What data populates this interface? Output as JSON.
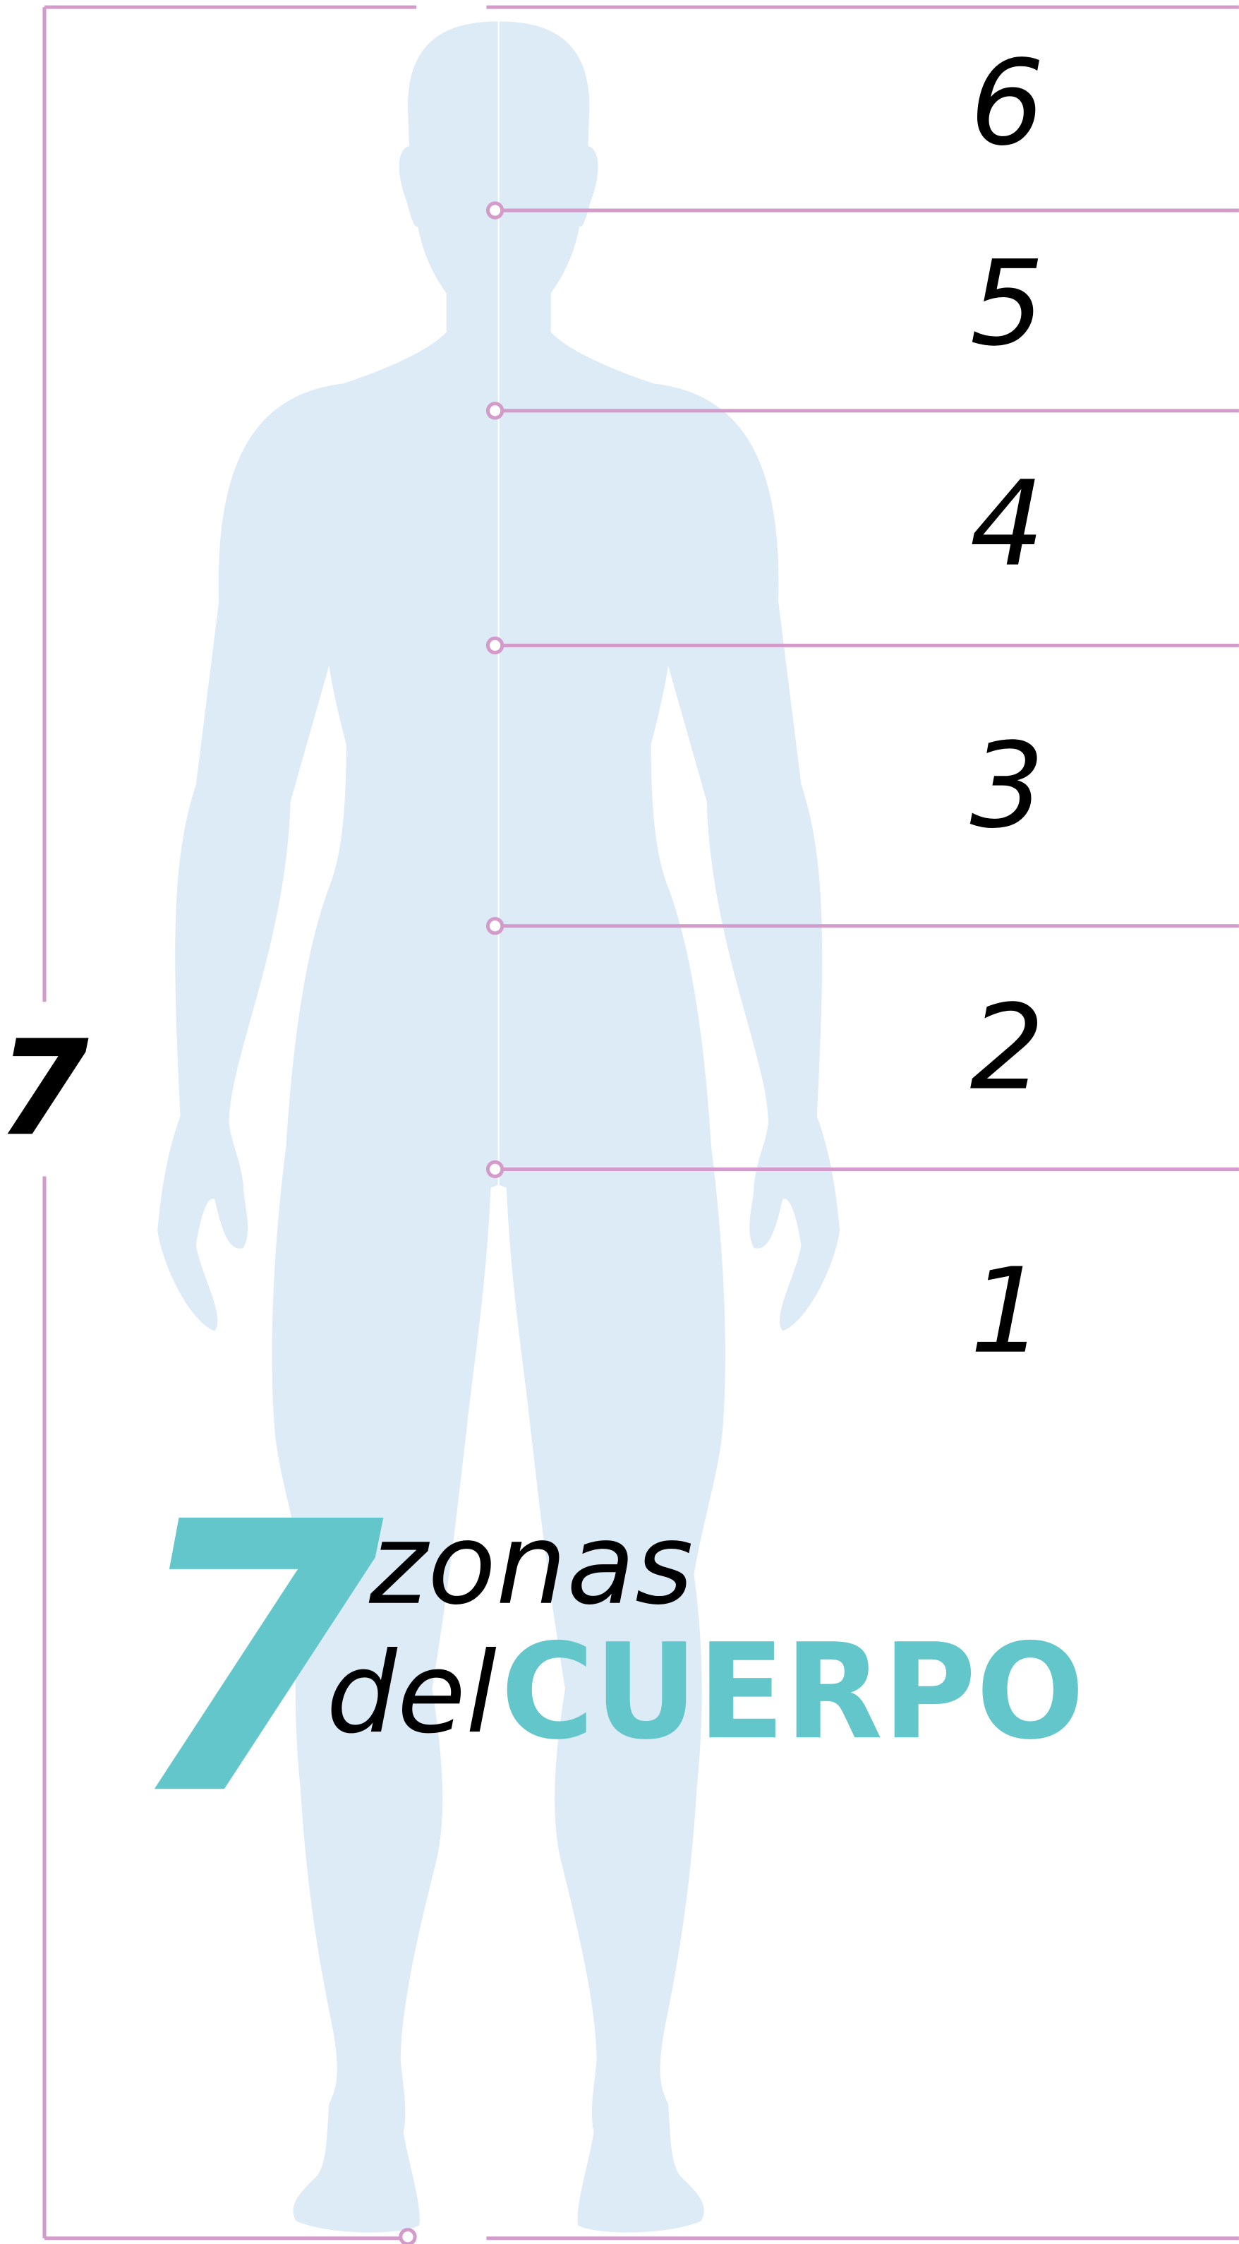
{
  "zones": [
    "6",
    "5",
    "4",
    "3",
    "2",
    "1"
  ],
  "side_number": "7",
  "title": {
    "number": "7",
    "word1": "zonas",
    "word2": "del",
    "word3": "CUERPO"
  }
}
